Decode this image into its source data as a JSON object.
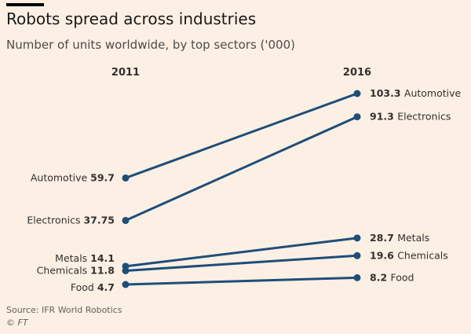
{
  "header": {
    "title": "Robots spread across industries",
    "subtitle": "Number of units worldwide, by top sectors ('000)"
  },
  "footer": {
    "source": "Source: IFR World Robotics",
    "copyright": "© FT"
  },
  "colors": {
    "background": "#fcf0e4",
    "line": "#1f4e79"
  },
  "chart_data": {
    "type": "line",
    "subtype": "slope",
    "x": [
      "2011",
      "2016"
    ],
    "series": [
      {
        "name": "Automotive",
        "values": [
          59.7,
          103.3
        ],
        "label_start": "59.7",
        "label_end": "103.3"
      },
      {
        "name": "Electronics",
        "values": [
          37.75,
          91.3
        ],
        "label_start": "37.75",
        "label_end": "91.3"
      },
      {
        "name": "Metals",
        "values": [
          14.1,
          28.7
        ],
        "label_start": "14.1",
        "label_end": "28.7"
      },
      {
        "name": "Chemicals",
        "values": [
          11.8,
          19.6
        ],
        "label_start": "11.8",
        "label_end": "19.6"
      },
      {
        "name": "Food",
        "values": [
          4.7,
          8.2
        ],
        "label_start": "4.7",
        "label_end": "8.2"
      }
    ],
    "grid": false,
    "legend": "direct labels"
  }
}
